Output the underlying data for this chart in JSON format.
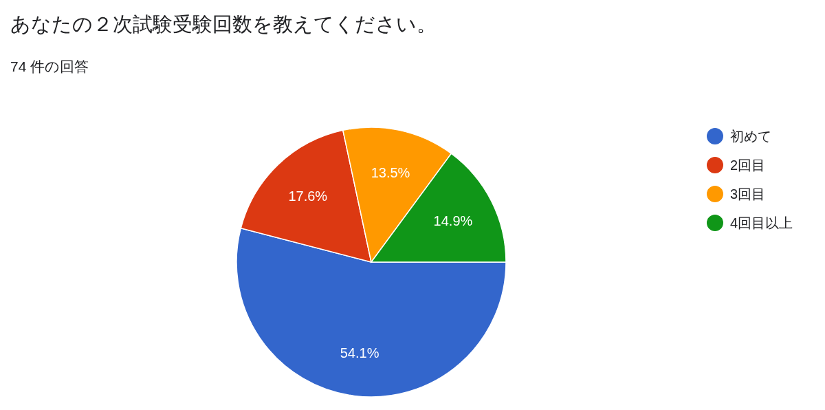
{
  "chart_data": {
    "type": "pie",
    "title": "あなたの２次試験受験回数を教えてください。",
    "subtitle": "74 件の回答",
    "categories": [
      "初めて",
      "2回目",
      "3回目",
      "4回目以上"
    ],
    "values": [
      54.1,
      17.6,
      13.5,
      14.9
    ],
    "colors": [
      "#3366cc",
      "#dc3912",
      "#ff9900",
      "#109618"
    ],
    "value_labels": [
      "54.1%",
      "17.6%",
      "13.5%",
      "14.9%"
    ],
    "legend": "right"
  }
}
